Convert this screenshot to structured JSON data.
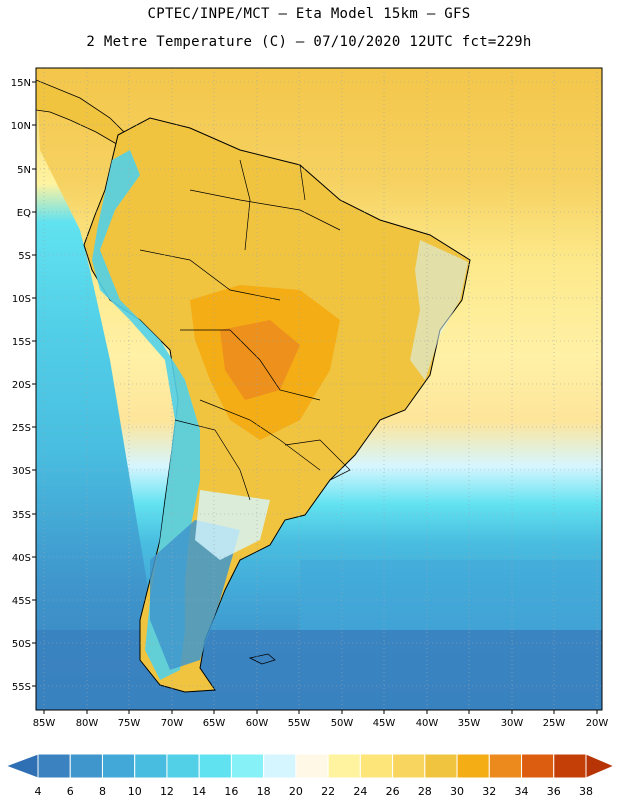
{
  "title_line1": "CPTEC/INPE/MCT –  Eta Model 15km – GFS",
  "title_line2": "2 Metre Temperature (C) – 07/10/2020 12UTC fct=229h",
  "lat_labels": [
    "15N",
    "10N",
    "5N",
    "EQ",
    "5S",
    "10S",
    "15S",
    "20S",
    "25S",
    "30S",
    "35S",
    "40S",
    "45S",
    "50S",
    "55S"
  ],
  "lon_labels": [
    "85W",
    "80W",
    "75W",
    "70W",
    "65W",
    "60W",
    "55W",
    "50W",
    "45W",
    "40W",
    "35W",
    "30W",
    "25W",
    "20W"
  ],
  "colorbar": {
    "ticks": [
      "4",
      "6",
      "8",
      "10",
      "12",
      "14",
      "16",
      "18",
      "20",
      "22",
      "24",
      "26",
      "28",
      "30",
      "32",
      "34",
      "36",
      "38"
    ],
    "colors": [
      "#2f6fb3",
      "#3a82c0",
      "#3f96cc",
      "#42a8d8",
      "#49bde0",
      "#52d0e8",
      "#61e2f0",
      "#86f2f8",
      "#d6f6ff",
      "#fff8e6",
      "#fff3a0",
      "#fde57a",
      "#f7d55e",
      "#f1c440",
      "#f4ad14",
      "#ec8a1e",
      "#dd5d10",
      "#c43f08",
      "#b63406"
    ]
  },
  "colors": {
    "ocean_warm": "#f7d55e",
    "ocean_mid": "#42a8d8",
    "land_hot": "#f1c440"
  }
}
